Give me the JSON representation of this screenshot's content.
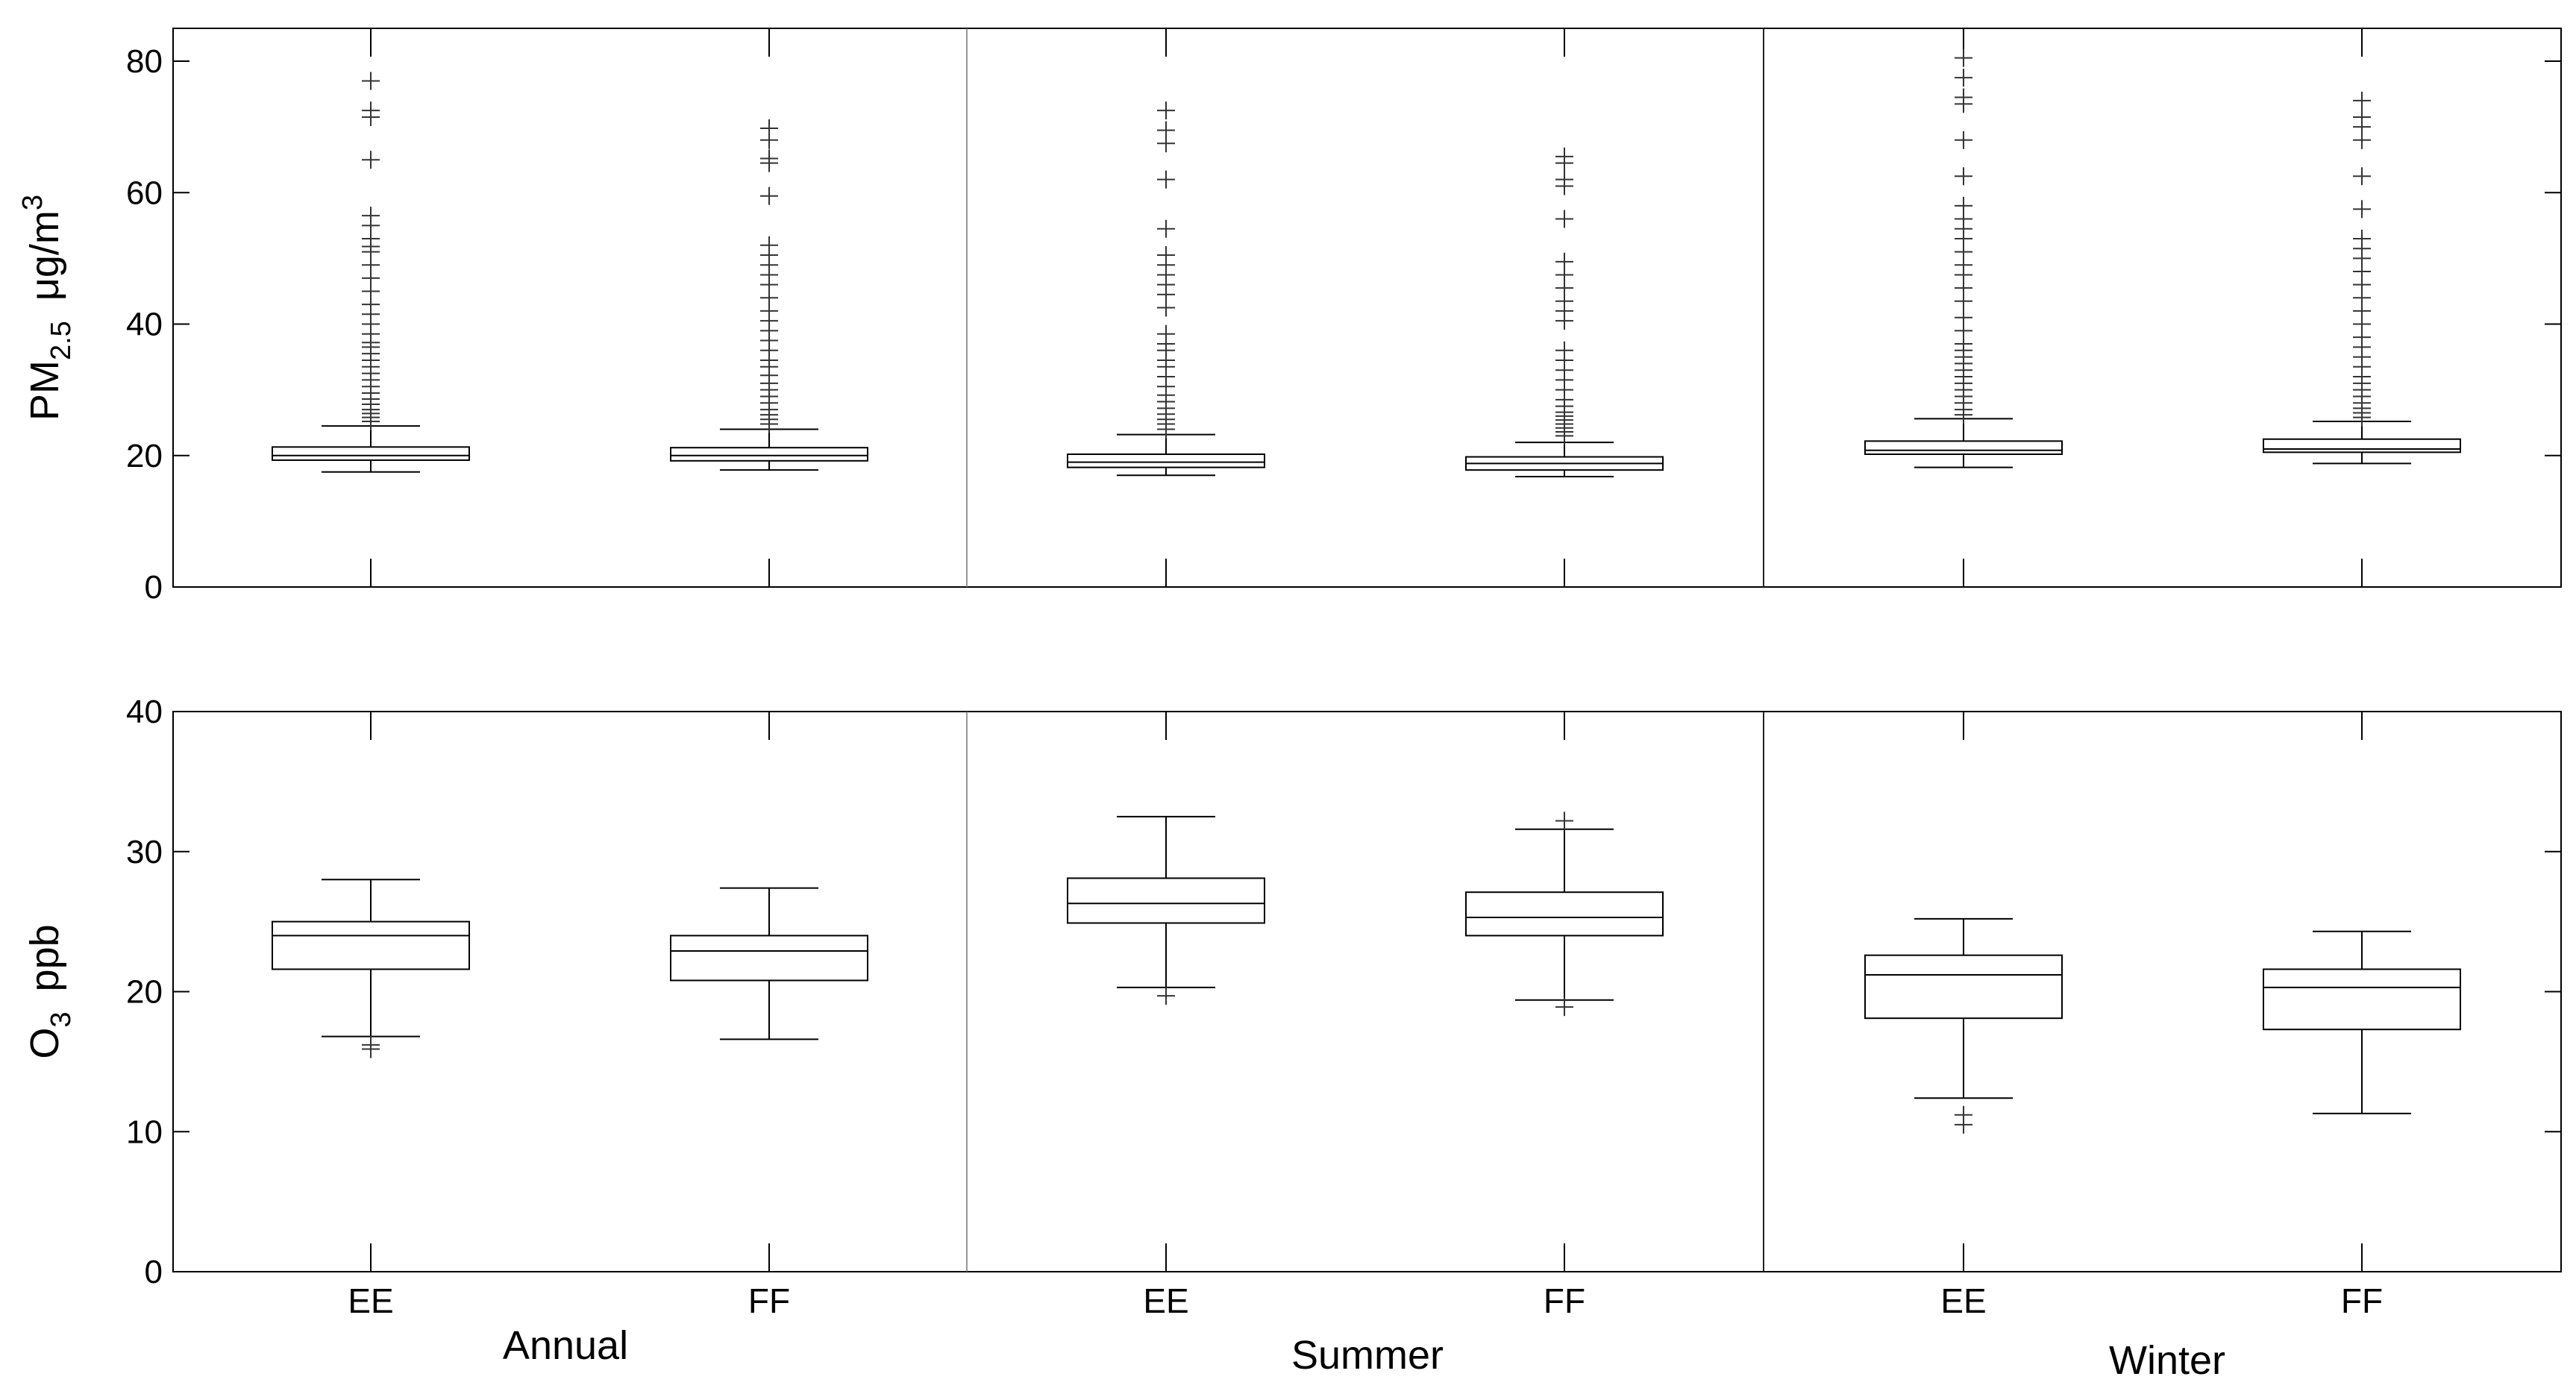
{
  "chart_data": [
    {
      "type": "box",
      "ylabel": {
        "main": "PM",
        "sub": "2.5",
        "unit_base": "μg/m",
        "unit_sup": "3"
      },
      "ylim": [
        0,
        85
      ],
      "yticks": [
        0,
        20,
        40,
        60,
        80
      ],
      "groups": [
        "Annual",
        "Summer",
        "Winter"
      ],
      "categories": [
        "EE",
        "FF"
      ],
      "boxes": [
        {
          "group": "Annual",
          "category": "EE",
          "whisker_low": 17.5,
          "q1": 19.3,
          "median": 20.0,
          "q3": 21.3,
          "whisker_high": 24.5,
          "outliers": [
            25.2,
            25.8,
            26.4,
            27.0,
            27.8,
            28.6,
            29.5,
            30.5,
            31.5,
            32.5,
            33.5,
            34.5,
            35.5,
            36.5,
            37.2,
            38.5,
            40.0,
            41.5,
            43.0,
            45.0,
            47.0,
            49.0,
            51.0,
            51.8,
            53.0,
            55.0,
            56.5,
            65.0,
            71.5,
            72.5,
            77.0
          ]
        },
        {
          "group": "Annual",
          "category": "FF",
          "whisker_low": 17.8,
          "q1": 19.2,
          "median": 20.0,
          "q3": 21.2,
          "whisker_high": 24.0,
          "outliers": [
            24.8,
            25.5,
            26.2,
            27.0,
            28.0,
            29.0,
            30.0,
            31.0,
            32.2,
            33.5,
            34.5,
            36.0,
            37.5,
            39.0,
            40.5,
            42.0,
            44.0,
            46.0,
            47.5,
            49.0,
            50.5,
            52.0,
            59.5,
            64.5,
            65.2,
            68.0,
            69.8
          ]
        },
        {
          "group": "Summer",
          "category": "EE",
          "whisker_low": 17.0,
          "q1": 18.2,
          "median": 19.0,
          "q3": 20.2,
          "whisker_high": 23.2,
          "outliers": [
            24.0,
            24.8,
            25.5,
            26.3,
            27.2,
            28.2,
            29.2,
            30.5,
            32.0,
            33.5,
            34.5,
            36.0,
            37.0,
            38.5,
            42.5,
            44.5,
            46.0,
            47.5,
            49.0,
            50.5,
            54.5,
            62.0,
            67.5,
            69.5,
            72.5
          ]
        },
        {
          "group": "Summer",
          "category": "FF",
          "whisker_low": 16.8,
          "q1": 17.8,
          "median": 18.8,
          "q3": 19.8,
          "whisker_high": 22.0,
          "outliers": [
            23.0,
            23.6,
            24.2,
            24.8,
            25.4,
            26.0,
            26.6,
            27.5,
            28.5,
            30.0,
            31.5,
            33.0,
            34.5,
            36.0,
            40.5,
            42.0,
            43.5,
            45.5,
            47.5,
            49.5,
            56.0,
            61.0,
            62.0,
            64.5,
            65.5
          ]
        },
        {
          "group": "Winter",
          "category": "EE",
          "whisker_low": 18.2,
          "q1": 20.2,
          "median": 20.8,
          "q3": 22.2,
          "whisker_high": 25.6,
          "outliers": [
            26.2,
            27.0,
            28.0,
            29.0,
            30.0,
            31.0,
            32.0,
            33.0,
            34.0,
            35.0,
            36.0,
            37.0,
            39.0,
            41.0,
            43.5,
            45.5,
            47.5,
            49.0,
            51.0,
            53.0,
            54.5,
            56.0,
            58.0,
            62.5,
            68.0,
            73.5,
            74.5,
            77.5,
            80.5
          ]
        },
        {
          "group": "Winter",
          "category": "FF",
          "whisker_low": 18.8,
          "q1": 20.5,
          "median": 21.0,
          "q3": 22.5,
          "whisker_high": 25.2,
          "outliers": [
            25.8,
            26.5,
            27.2,
            28.0,
            29.0,
            30.0,
            31.0,
            32.0,
            33.5,
            35.0,
            36.5,
            38.0,
            40.0,
            42.0,
            44.0,
            46.0,
            48.0,
            50.0,
            51.5,
            53.0,
            57.5,
            62.5,
            68.0,
            70.0,
            71.5,
            74.0
          ]
        }
      ]
    },
    {
      "type": "box",
      "ylabel": {
        "main": "O",
        "sub": "3",
        "unit_base": "ppb",
        "unit_sup": ""
      },
      "ylim": [
        0,
        40
      ],
      "yticks": [
        0,
        10,
        20,
        30,
        40
      ],
      "groups": [
        "Annual",
        "Summer",
        "Winter"
      ],
      "categories": [
        "EE",
        "FF"
      ],
      "boxes": [
        {
          "group": "Annual",
          "category": "EE",
          "whisker_low": 16.8,
          "q1": 21.6,
          "median": 24.0,
          "q3": 25.0,
          "whisker_high": 28.0,
          "outliers": [
            16.2,
            15.9
          ]
        },
        {
          "group": "Annual",
          "category": "FF",
          "whisker_low": 16.6,
          "q1": 20.8,
          "median": 22.9,
          "q3": 24.0,
          "whisker_high": 27.4,
          "outliers": []
        },
        {
          "group": "Summer",
          "category": "EE",
          "whisker_low": 20.3,
          "q1": 24.9,
          "median": 26.3,
          "q3": 28.1,
          "whisker_high": 32.5,
          "outliers": [
            19.7
          ]
        },
        {
          "group": "Summer",
          "category": "FF",
          "whisker_low": 19.4,
          "q1": 24.0,
          "median": 25.3,
          "q3": 27.1,
          "whisker_high": 31.6,
          "outliers": [
            18.9,
            32.2
          ]
        },
        {
          "group": "Winter",
          "category": "EE",
          "whisker_low": 12.4,
          "q1": 18.1,
          "median": 21.2,
          "q3": 22.6,
          "whisker_high": 25.2,
          "outliers": [
            11.2,
            10.5
          ]
        },
        {
          "group": "Winter",
          "category": "FF",
          "whisker_low": 11.3,
          "q1": 17.3,
          "median": 20.3,
          "q3": 21.6,
          "whisker_high": 24.3,
          "outliers": []
        }
      ]
    }
  ]
}
